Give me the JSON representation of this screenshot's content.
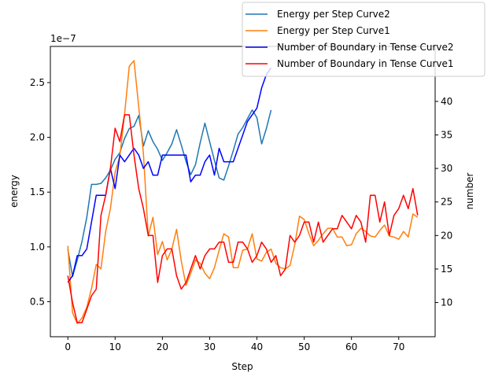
{
  "chart_data": {
    "type": "line",
    "title": "",
    "xlabel": "Step",
    "ylabel_left": "energy",
    "ylabel_right": "number",
    "left_axis_offset_label": "1e−7",
    "xlim": [
      -3.7,
      77.7
    ],
    "xticks": [
      0,
      10,
      20,
      30,
      40,
      50,
      60,
      70
    ],
    "ylim_left": [
      0.18,
      2.83
    ],
    "yticks_left": [
      "0.5",
      "1.0",
      "1.5",
      "2.0",
      "2.5"
    ],
    "yticks_left_values": [
      0.5,
      1.0,
      1.5,
      2.0,
      2.5
    ],
    "ylim_right": [
      4.9,
      48.2
    ],
    "yticks_right": [
      10,
      15,
      20,
      25,
      30,
      35,
      40
    ],
    "grid": false,
    "legend_position": "top-right",
    "series": [
      {
        "name": "Energy per Step Curve2",
        "axis": "left",
        "color": "#1f77b4",
        "x": [
          0,
          1,
          2,
          3,
          4,
          5,
          6,
          7,
          8,
          9,
          10,
          11,
          12,
          13,
          14,
          15,
          16,
          17,
          18,
          19,
          20,
          21,
          22,
          23,
          24,
          25,
          26,
          27,
          28,
          29,
          30,
          31,
          32,
          33,
          34,
          35,
          36,
          37,
          38,
          39,
          40,
          41,
          42,
          43
        ],
        "values": [
          0.98,
          0.73,
          0.88,
          1.05,
          1.27,
          1.57,
          1.57,
          1.58,
          1.63,
          1.7,
          1.8,
          1.86,
          1.99,
          2.08,
          2.1,
          2.2,
          1.92,
          2.06,
          1.96,
          1.89,
          1.79,
          1.86,
          1.94,
          2.07,
          1.93,
          1.78,
          1.66,
          1.75,
          1.95,
          2.13,
          1.96,
          1.79,
          1.63,
          1.61,
          1.74,
          1.88,
          2.03,
          2.09,
          2.17,
          2.25,
          2.18,
          1.94,
          2.08,
          2.25
        ]
      },
      {
        "name": "Energy per Step Curve1",
        "axis": "left",
        "color": "#ff7f0e",
        "x": [
          0,
          1,
          2,
          3,
          4,
          5,
          6,
          7,
          8,
          9,
          10,
          11,
          12,
          13,
          14,
          15,
          16,
          17,
          18,
          19,
          20,
          21,
          22,
          23,
          24,
          25,
          26,
          27,
          28,
          29,
          30,
          31,
          32,
          33,
          34,
          35,
          36,
          37,
          38,
          39,
          40,
          41,
          42,
          43,
          44,
          45,
          46,
          47,
          48,
          49,
          50,
          51,
          52,
          53,
          54,
          55,
          56,
          57,
          58,
          59,
          60,
          61,
          62,
          63,
          64,
          65,
          66,
          67,
          68,
          69,
          70,
          71,
          72,
          73,
          74
        ],
        "values": [
          1.01,
          0.4,
          0.3,
          0.35,
          0.45,
          0.62,
          0.84,
          0.8,
          1.14,
          1.35,
          1.68,
          1.83,
          2.21,
          2.65,
          2.7,
          2.28,
          1.85,
          1.1,
          1.27,
          0.93,
          1.05,
          0.88,
          0.98,
          1.16,
          0.87,
          0.65,
          0.76,
          0.88,
          0.85,
          0.76,
          0.71,
          0.81,
          0.97,
          1.12,
          1.09,
          0.81,
          0.81,
          0.97,
          0.98,
          1.12,
          0.89,
          0.87,
          0.95,
          0.98,
          0.85,
          0.81,
          0.8,
          0.83,
          1.02,
          1.28,
          1.25,
          1.12,
          1.01,
          1.06,
          1.12,
          1.17,
          1.17,
          1.09,
          1.09,
          1.01,
          1.02,
          1.12,
          1.17,
          1.14,
          1.1,
          1.09,
          1.15,
          1.2,
          1.1,
          1.09,
          1.07,
          1.14,
          1.09,
          1.3,
          1.27
        ]
      },
      {
        "name": "Number of Boundary in Tense Curve2",
        "axis": "right",
        "color": "#0000ff",
        "x": [
          0,
          1,
          2,
          3,
          4,
          5,
          6,
          7,
          8,
          9,
          10,
          11,
          12,
          13,
          14,
          15,
          16,
          17,
          18,
          19,
          20,
          21,
          22,
          23,
          24,
          25,
          26,
          27,
          28,
          29,
          30,
          31,
          32,
          33,
          34,
          35,
          36,
          37,
          38,
          39,
          40,
          41,
          42,
          43
        ],
        "values": [
          13,
          14,
          17,
          17,
          18,
          22,
          26,
          26,
          26,
          30,
          27,
          32,
          31,
          32,
          33,
          32,
          30,
          31,
          29,
          29,
          32,
          32,
          32,
          32,
          32,
          32,
          28,
          29,
          29,
          31,
          32,
          29,
          33,
          31,
          31,
          31,
          33,
          35,
          37,
          38,
          39,
          42,
          44,
          45
        ]
      },
      {
        "name": "Number of Boundary in Tense Curve1",
        "axis": "right",
        "color": "#ff0000",
        "x": [
          0,
          1,
          2,
          3,
          4,
          5,
          6,
          7,
          8,
          9,
          10,
          11,
          12,
          13,
          14,
          15,
          16,
          17,
          18,
          19,
          20,
          21,
          22,
          23,
          24,
          25,
          26,
          27,
          28,
          29,
          30,
          31,
          32,
          33,
          34,
          35,
          36,
          37,
          38,
          39,
          40,
          41,
          42,
          43,
          44,
          45,
          46,
          47,
          48,
          49,
          50,
          51,
          52,
          53,
          54,
          55,
          56,
          57,
          58,
          59,
          60,
          61,
          62,
          63,
          64,
          65,
          66,
          67,
          68,
          69,
          70,
          71,
          72,
          73,
          74
        ],
        "values": [
          14,
          10,
          7,
          7,
          9,
          11,
          12,
          23,
          26,
          30,
          36,
          34,
          38,
          38,
          32,
          27,
          24,
          20,
          20,
          13,
          17,
          18,
          18,
          14,
          12,
          13,
          15,
          17,
          15,
          17,
          18,
          18,
          19,
          19,
          16,
          16,
          19,
          19,
          18,
          16,
          17,
          19,
          18,
          16,
          17,
          14,
          15,
          20,
          19,
          20,
          22,
          22,
          19,
          22,
          19,
          20,
          21,
          21,
          23,
          22,
          21,
          23,
          22,
          19,
          26,
          26,
          22,
          25,
          20,
          23,
          24,
          26,
          24,
          27,
          23
        ]
      }
    ]
  }
}
